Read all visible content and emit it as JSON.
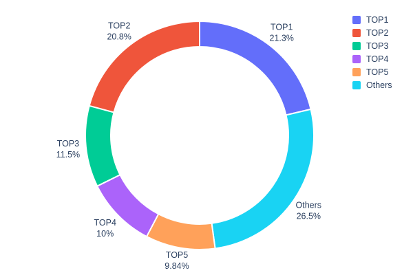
{
  "chart_data": {
    "type": "pie",
    "title": "",
    "hole": 0.78,
    "labels": [
      "TOP1",
      "TOP2",
      "TOP3",
      "TOP4",
      "TOP5",
      "Others"
    ],
    "values": [
      21.3,
      20.8,
      11.5,
      10,
      9.84,
      26.5
    ],
    "display_percents": [
      "21.3%",
      "20.8%",
      "11.5%",
      "10%",
      "9.84%",
      "26.5%"
    ],
    "colors": [
      "#636efa",
      "#ef553b",
      "#00cc96",
      "#ab63fa",
      "#ffa15a",
      "#19d3f3"
    ],
    "clockwise_order": [
      0,
      5,
      4,
      3,
      2,
      1
    ],
    "rotation_start": "12-oclock",
    "direction": "clockwise",
    "labels_position": "outside",
    "legend_position": "top-right",
    "legend_entries": [
      "TOP1",
      "TOP2",
      "TOP3",
      "TOP4",
      "TOP5",
      "Others"
    ],
    "text_color": "#2a3f5f",
    "background_color": "#ffffff",
    "slice_border_color": "#ffffff"
  }
}
